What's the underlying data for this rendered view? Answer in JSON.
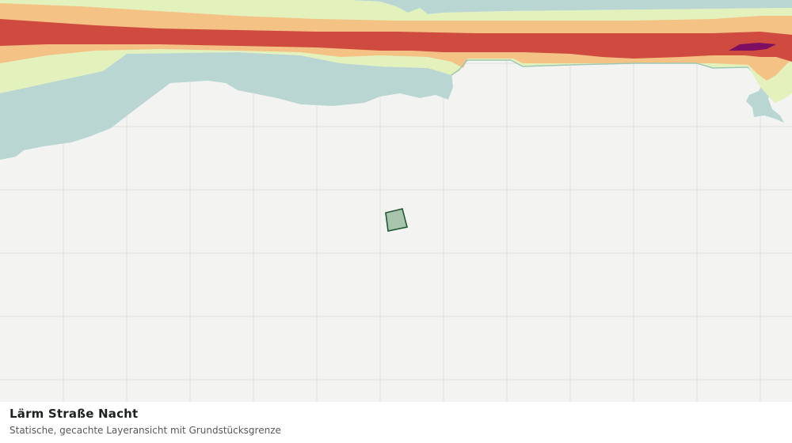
{
  "caption": {
    "title": "Lärm Straße Nacht",
    "subtitle": "Statische, gecachte Layeransicht mit Grundstücksgrenze"
  },
  "map": {
    "grid": true,
    "layers": [
      "water",
      "noise-band-low",
      "noise-band-medium",
      "noise-band-high",
      "noise-band-highest",
      "parcel"
    ]
  },
  "colors": {
    "background": "#f3f4f2",
    "grid": "#dfe2df",
    "water": "#b9d6d3",
    "noise_low": "#e3f1bd",
    "noise_medium": "#f4c285",
    "noise_high": "#cf4b3f",
    "noise_highest": "#7d0f63",
    "parcel_fill": "#a8c4ad",
    "parcel_stroke": "#1f5a32"
  }
}
